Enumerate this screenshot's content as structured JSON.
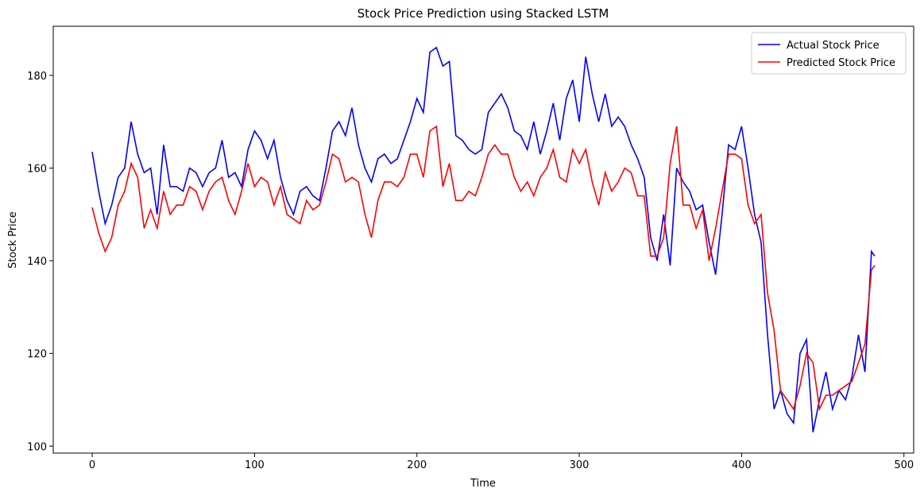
{
  "chart_data": {
    "type": "line",
    "title": "Stock Price Prediction using Stacked LSTM",
    "x_label": "Time",
    "y_label": "Stock Price",
    "x": [
      0,
      4,
      8,
      12,
      16,
      20,
      24,
      28,
      32,
      36,
      40,
      44,
      48,
      52,
      56,
      60,
      64,
      68,
      72,
      76,
      80,
      84,
      88,
      92,
      96,
      100,
      104,
      108,
      112,
      116,
      120,
      124,
      128,
      132,
      136,
      140,
      144,
      148,
      152,
      156,
      160,
      164,
      168,
      172,
      176,
      180,
      184,
      188,
      192,
      196,
      200,
      204,
      208,
      212,
      216,
      220,
      224,
      228,
      232,
      236,
      240,
      244,
      248,
      252,
      256,
      260,
      264,
      268,
      272,
      276,
      280,
      284,
      288,
      292,
      296,
      300,
      304,
      308,
      312,
      316,
      320,
      324,
      328,
      332,
      336,
      340,
      344,
      348,
      352,
      356,
      360,
      364,
      368,
      372,
      376,
      380,
      384,
      388,
      392,
      396,
      400,
      404,
      408,
      412,
      416,
      420,
      424,
      428,
      432,
      436,
      440,
      444,
      448,
      452,
      456,
      460,
      464,
      468,
      472,
      476,
      480,
      482
    ],
    "series": [
      {
        "name": "Actual Stock Price",
        "color": "#0000ff",
        "values": [
          163.5,
          155,
          148,
          152,
          158,
          160,
          170,
          163,
          159,
          160,
          150,
          165,
          156,
          156,
          155,
          160,
          159,
          156,
          159,
          160,
          166,
          158,
          159,
          156,
          164,
          168,
          166,
          162,
          166,
          158,
          153,
          150,
          155,
          156,
          154,
          153,
          160,
          168,
          170,
          167,
          173,
          165,
          160,
          157,
          162,
          163,
          161,
          162,
          166,
          170,
          175,
          172,
          185,
          186,
          182,
          183,
          167,
          166,
          164,
          163,
          164,
          172,
          174,
          176,
          173,
          168,
          167,
          164,
          170,
          163,
          168,
          174,
          166,
          175,
          179,
          170,
          184,
          176,
          170,
          176,
          169,
          171,
          169,
          165,
          162,
          158,
          145,
          140,
          150,
          139,
          160,
          157,
          155,
          151,
          152,
          144,
          137,
          150,
          165,
          164,
          169,
          160,
          150,
          144,
          124,
          108,
          112,
          107,
          105,
          120,
          123,
          103,
          110,
          116,
          108,
          112,
          110,
          115,
          124,
          116,
          142,
          141
        ]
      },
      {
        "name": "Predicted Stock Price",
        "color": "#ff0000",
        "values": [
          151.5,
          146,
          142,
          145,
          152,
          155,
          161,
          158,
          147,
          151,
          147,
          155,
          150,
          152,
          152,
          156,
          155,
          151,
          155,
          157,
          158,
          153,
          150,
          155,
          161,
          156,
          158,
          157,
          152,
          156,
          150,
          149,
          148,
          153,
          151,
          152,
          157,
          163,
          162,
          157,
          158,
          157,
          150,
          145,
          153,
          157,
          157,
          156,
          158,
          163,
          163,
          158,
          168,
          169,
          156,
          161,
          153,
          153,
          155,
          154,
          158,
          163,
          165,
          163,
          163,
          158,
          155,
          157,
          154,
          158,
          160,
          164,
          158,
          157,
          164,
          161,
          164,
          157,
          152,
          159,
          155,
          157,
          160,
          159,
          154,
          154,
          141,
          141,
          145,
          161,
          169,
          152,
          152,
          147,
          151,
          140,
          147,
          155,
          163,
          163,
          162,
          152,
          148,
          150,
          133,
          125,
          112,
          110,
          108,
          113,
          120,
          118,
          108,
          111,
          111,
          112,
          113,
          114,
          118,
          122,
          138,
          139
        ]
      }
    ],
    "xlim": [
      -24,
      506
    ],
    "ylim": [
      98.5,
      190.6
    ],
    "xticks": [
      0,
      100,
      200,
      300,
      400,
      500
    ],
    "yticks": [
      100,
      120,
      140,
      160,
      180
    ],
    "legend": "upper right"
  }
}
